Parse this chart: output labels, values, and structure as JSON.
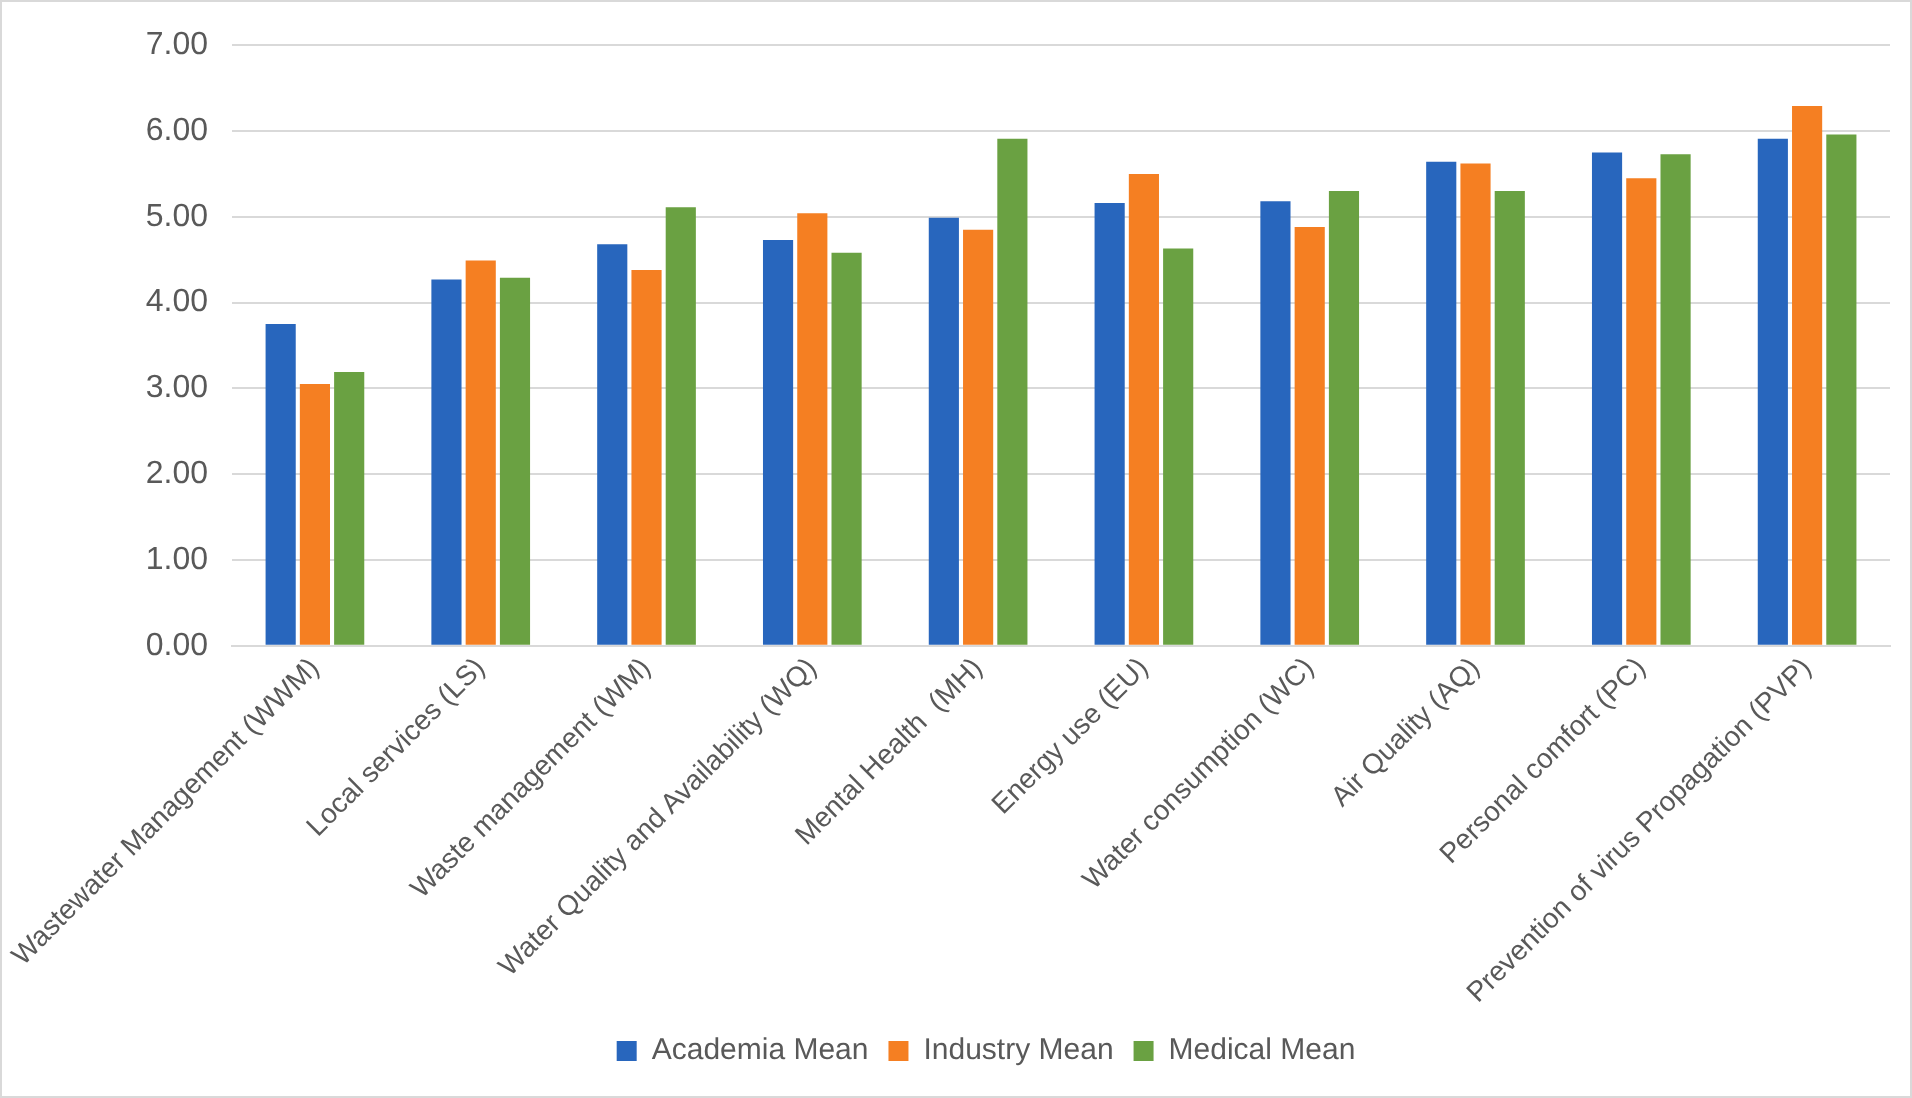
{
  "chart_data": {
    "type": "bar",
    "categories": [
      "Wastewater Management (WWM)",
      "Local services (LS)",
      "Waste management (WM)",
      "Water Quality and Availability (WQ)",
      "Mental Health  (MH)",
      "Energy use (EU)",
      "Water consumption (WC)",
      "Air Quality (AQ)",
      "Personal comfort (PC)",
      "Prevention of virus Propagation (PVP)"
    ],
    "series": [
      {
        "name": "Academia Mean",
        "color": "#2866bd",
        "values": [
          3.75,
          4.27,
          4.68,
          4.73,
          4.99,
          5.16,
          5.18,
          5.64,
          5.75,
          5.91
        ]
      },
      {
        "name": "Industry Mean",
        "color": "#f57f22",
        "values": [
          3.05,
          4.49,
          4.38,
          5.04,
          4.85,
          5.5,
          4.88,
          5.62,
          5.45,
          6.29
        ]
      },
      {
        "name": "Medical Mean",
        "color": "#6aa142",
        "values": [
          3.19,
          4.29,
          5.11,
          4.58,
          5.91,
          4.63,
          5.3,
          5.3,
          5.73,
          5.96
        ]
      }
    ],
    "ylim": [
      0,
      7
    ],
    "yticks": [
      {
        "value": 0,
        "label": "0.00"
      },
      {
        "value": 1,
        "label": "1.00"
      },
      {
        "value": 2,
        "label": "2.00"
      },
      {
        "value": 3,
        "label": "3.00"
      },
      {
        "value": 4,
        "label": "4.00"
      },
      {
        "value": 5,
        "label": "5.00"
      },
      {
        "value": 6,
        "label": "6.00"
      },
      {
        "value": 7,
        "label": "7.00"
      }
    ],
    "grid": "y",
    "legend": "bottom"
  }
}
